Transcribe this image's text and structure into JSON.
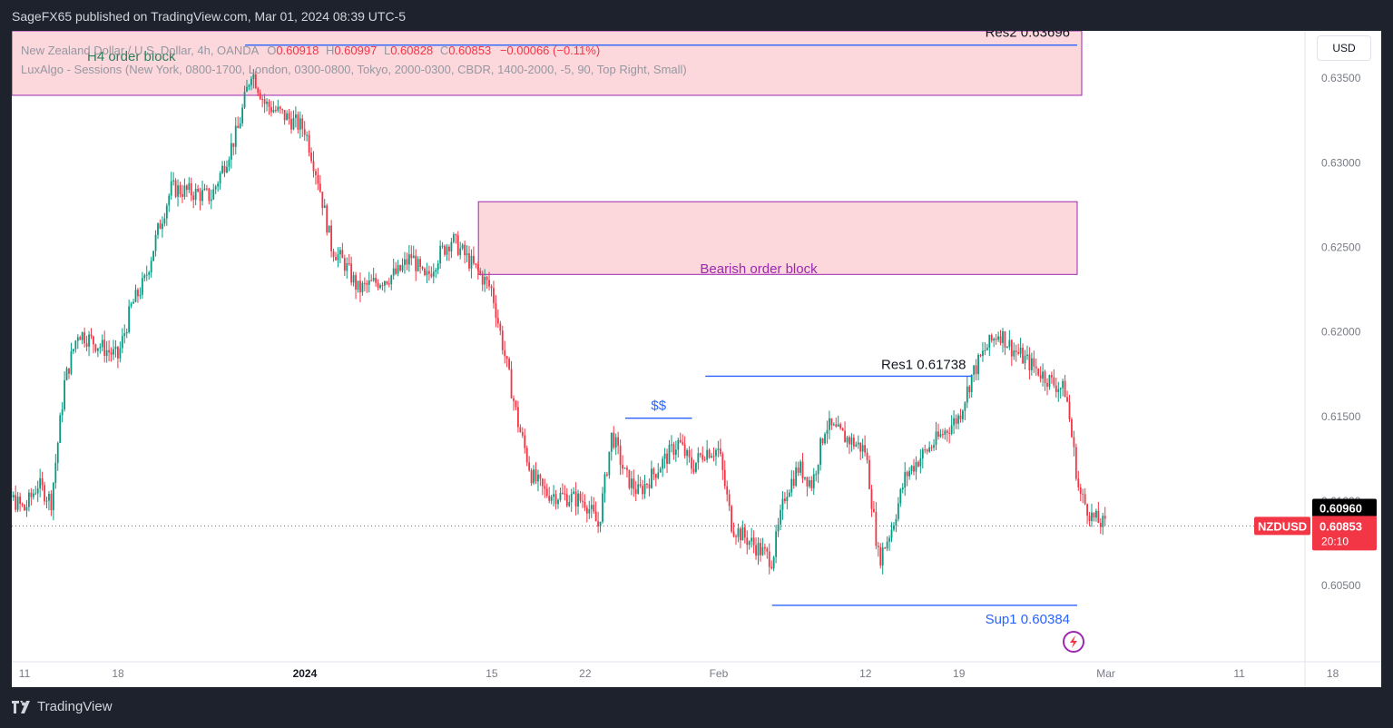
{
  "header": {
    "published_by": "SageFX65 published on TradingView.com, Mar 01, 2024 08:39 UTC-5"
  },
  "legend": {
    "symbol_line": "New Zealand Dollar / U.S. Dollar, 4h, OANDA",
    "o_label": "O",
    "o_value": "0.60918",
    "h_label": "H",
    "h_value": "0.60997",
    "l_label": "L",
    "l_value": "0.60828",
    "c_label": "C",
    "c_value": "0.60853",
    "change": "−0.00066 (−0.11%)",
    "indicator_line": "LuxAlgo - Sessions (New York, 0800-1700, London, 0300-0800, Tokyo, 2000-0300, CBDR, 1400-2000, -5, 90, Top Right, Small)"
  },
  "currency_button": "USD",
  "footer": {
    "brand": "TradingView"
  },
  "colors": {
    "up": "#089981",
    "down": "#f23645",
    "level": "#2962ff",
    "zone_fill": "#fcd7dc",
    "zone_border": "#9c27b0",
    "zone_text": "#9c27b0",
    "h4_text": "#2e7d5b"
  },
  "chart_data": {
    "type": "candlestick",
    "symbol": "NZDUSD",
    "timeframe": "4h",
    "ylim": [
      0.6005,
      0.6378
    ],
    "y_ticks": [
      0.605,
      0.61,
      0.615,
      0.62,
      0.625,
      0.63,
      0.635
    ],
    "y_tick_labels": [
      "0.60500",
      "0.61000",
      "0.61500",
      "0.62000",
      "0.62500",
      "0.63000",
      "0.63500"
    ],
    "x_ticks": [
      {
        "label": "11",
        "date": "2023-12-11"
      },
      {
        "label": "18",
        "date": "2023-12-18"
      },
      {
        "label": "2024",
        "date": "2024-01-01"
      },
      {
        "label": "15",
        "date": "2024-01-15"
      },
      {
        "label": "22",
        "date": "2024-01-22"
      },
      {
        "label": "Feb",
        "date": "2024-02-01"
      },
      {
        "label": "12",
        "date": "2024-02-12"
      },
      {
        "label": "19",
        "date": "2024-02-19"
      },
      {
        "label": "Mar",
        "date": "2024-03-01"
      },
      {
        "label": "11",
        "date": "2024-03-11"
      },
      {
        "label": "18",
        "date": "2024-03-18"
      }
    ],
    "path": [
      [
        "2023-12-08",
        0.6115
      ],
      [
        "2023-12-11",
        0.6095
      ],
      [
        "2023-12-12",
        0.611
      ],
      [
        "2023-12-13",
        0.61
      ],
      [
        "2023-12-14",
        0.617
      ],
      [
        "2023-12-15",
        0.62
      ],
      [
        "2023-12-18",
        0.6185
      ],
      [
        "2023-12-19",
        0.6215
      ],
      [
        "2023-12-20",
        0.623
      ],
      [
        "2023-12-21",
        0.626
      ],
      [
        "2023-12-22",
        0.6285
      ],
      [
        "2023-12-25",
        0.628
      ],
      [
        "2023-12-26",
        0.63
      ],
      [
        "2023-12-27",
        0.632
      ],
      [
        "2023-12-28",
        0.6355
      ],
      [
        "2023-12-29",
        0.6335
      ],
      [
        "2024-01-01",
        0.632
      ],
      [
        "2024-01-02",
        0.629
      ],
      [
        "2024-01-03",
        0.625
      ],
      [
        "2024-01-04",
        0.624
      ],
      [
        "2024-01-05",
        0.6225
      ],
      [
        "2024-01-08",
        0.6235
      ],
      [
        "2024-01-09",
        0.6245
      ],
      [
        "2024-01-10",
        0.623
      ],
      [
        "2024-01-11",
        0.6245
      ],
      [
        "2024-01-12",
        0.6255
      ],
      [
        "2024-01-15",
        0.6225
      ],
      [
        "2024-01-16",
        0.6185
      ],
      [
        "2024-01-17",
        0.6145
      ],
      [
        "2024-01-18",
        0.6115
      ],
      [
        "2024-01-19",
        0.6105
      ],
      [
        "2024-01-22",
        0.61
      ],
      [
        "2024-01-23",
        0.6085
      ],
      [
        "2024-01-24",
        0.614
      ],
      [
        "2024-01-25",
        0.6115
      ],
      [
        "2024-01-26",
        0.6105
      ],
      [
        "2024-01-29",
        0.6135
      ],
      [
        "2024-01-30",
        0.612
      ],
      [
        "2024-01-31",
        0.613
      ],
      [
        "2024-02-01",
        0.613
      ],
      [
        "2024-02-02",
        0.6085
      ],
      [
        "2024-02-05",
        0.6065
      ],
      [
        "2024-02-06",
        0.6105
      ],
      [
        "2024-02-07",
        0.612
      ],
      [
        "2024-02-08",
        0.611
      ],
      [
        "2024-02-09",
        0.6145
      ],
      [
        "2024-02-12",
        0.613
      ],
      [
        "2024-02-13",
        0.6065
      ],
      [
        "2024-02-14",
        0.6085
      ],
      [
        "2024-02-15",
        0.6115
      ],
      [
        "2024-02-16",
        0.6125
      ],
      [
        "2024-02-19",
        0.615
      ],
      [
        "2024-02-20",
        0.6175
      ],
      [
        "2024-02-21",
        0.619
      ],
      [
        "2024-02-22",
        0.62
      ],
      [
        "2024-02-23",
        0.619
      ],
      [
        "2024-02-26",
        0.617
      ],
      [
        "2024-02-27",
        0.6165
      ],
      [
        "2024-02-28",
        0.6105
      ],
      [
        "2024-02-29",
        0.609
      ],
      [
        "2024-03-01",
        0.60853
      ]
    ],
    "last_price": {
      "symbol": "NZDUSD",
      "value": "0.60853",
      "countdown": "20:10"
    },
    "high_marker": "0.60960",
    "low_marker": "0.60800",
    "levels": [
      {
        "label": "Res2 0.63696",
        "value": 0.63696,
        "from": "2023-12-28",
        "to": "2024-03-01"
      },
      {
        "label": "Res1 0.61738",
        "value": 0.61738,
        "from": "2024-01-31",
        "to": "2024-02-20"
      },
      {
        "label": "$$",
        "value": 0.6149,
        "from": "2024-01-25",
        "to": "2024-01-30"
      },
      {
        "label": "Sup1  0.60384",
        "value": 0.60384,
        "from": "2024-02-05",
        "to": "2024-03-01"
      }
    ],
    "zones": [
      {
        "label": "H4 order block",
        "y0": 0.637,
        "y1": 0.6378,
        "from": "2023-12-08",
        "to": "2024-03-01"
      },
      {
        "label": "Bearish order block",
        "y0": 0.6234,
        "y1": 0.6277,
        "from": "2024-01-14",
        "to": "2024-03-01"
      }
    ]
  }
}
